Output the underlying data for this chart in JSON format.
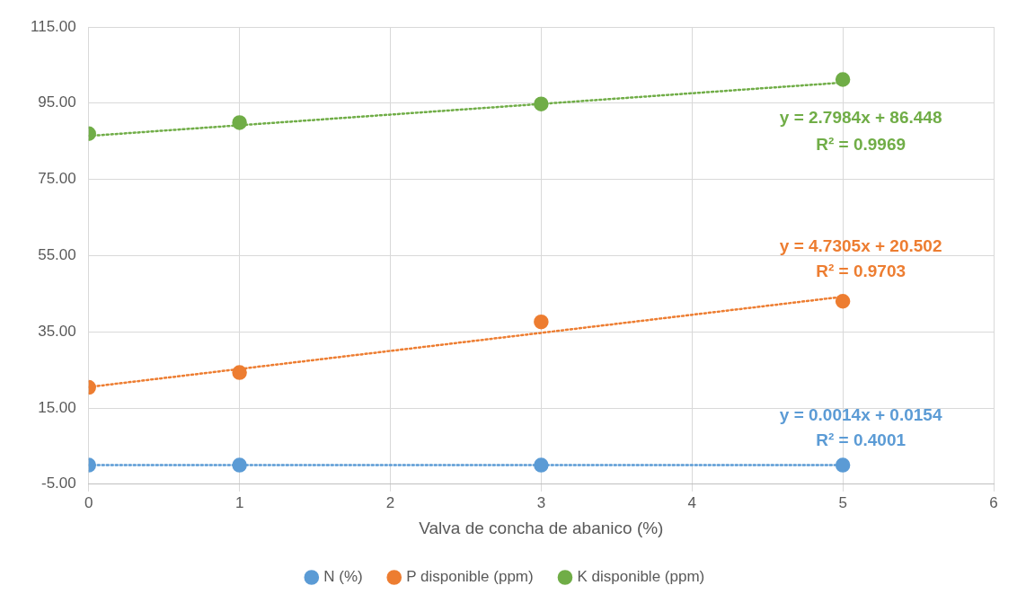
{
  "chart_data": {
    "type": "scatter",
    "xlabel": "Valva de concha de abanico (%)",
    "xlim": [
      0,
      6
    ],
    "xticks": [
      0,
      1,
      2,
      3,
      4,
      5,
      6
    ],
    "ylim": [
      -5,
      115
    ],
    "yticks": [
      {
        "value": -5,
        "label": "-5.00"
      },
      {
        "value": 15,
        "label": "15.00"
      },
      {
        "value": 35,
        "label": "35.00"
      },
      {
        "value": 55,
        "label": "55.00"
      },
      {
        "value": 75,
        "label": "75.00"
      },
      {
        "value": 95,
        "label": "95.00"
      },
      {
        "value": 115,
        "label": "115.00"
      }
    ],
    "grid": true,
    "legend": "bottom",
    "marker": "circle",
    "series": [
      {
        "name": "N (%)",
        "color": "#5b9bd5",
        "x": [
          0,
          1,
          3,
          5
        ],
        "values": [
          0,
          0,
          0,
          0
        ]
      },
      {
        "name": "P disponible (ppm)",
        "color": "#ed7d31",
        "x": [
          0,
          1,
          3,
          5
        ],
        "values": [
          20.4,
          24.3,
          37.6,
          43.0
        ]
      },
      {
        "name": "K disponible (ppm)",
        "color": "#70ad47",
        "x": [
          0,
          1,
          3,
          5
        ],
        "values": [
          87.0,
          89.9,
          94.8,
          101.2
        ]
      },
      {
        "type": "line",
        "color": "#5b9bd5",
        "x": [
          0,
          5
        ],
        "values": [
          0,
          0
        ],
        "marker": "none",
        "line_style": "dotted"
      },
      {
        "type": "line",
        "color": "#ed7d31",
        "x": [
          0,
          5
        ],
        "values": [
          20.5,
          44.2
        ],
        "marker": "none",
        "line_style": "dotted"
      },
      {
        "type": "line",
        "color": "#70ad47",
        "x": [
          0,
          5
        ],
        "values": [
          86.4,
          100.4
        ],
        "marker": "none",
        "line_style": "dotted"
      }
    ],
    "annotations": [
      "y = 0.0014x + 0.0154",
      "R² = 0.4001",
      "y = 4.7305x + 20.502",
      "R² = 0.9703",
      "y = 2.7984x + 86.448",
      "R² = 0.9969"
    ]
  }
}
